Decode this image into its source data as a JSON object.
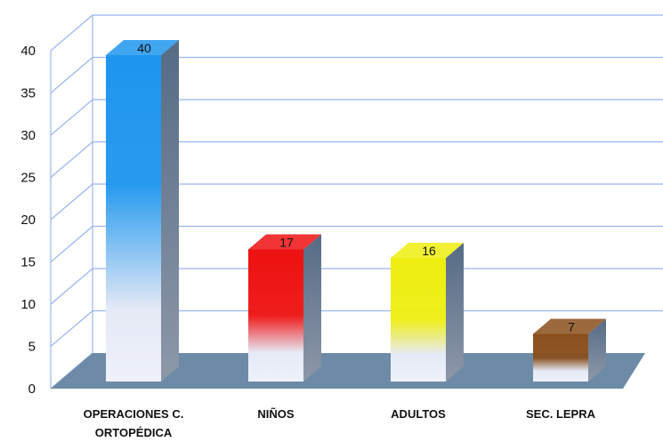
{
  "chart_data": {
    "type": "bar",
    "title": "",
    "xlabel": "",
    "ylabel": "",
    "ylim": [
      0,
      40
    ],
    "yticks": [
      0,
      5,
      10,
      15,
      20,
      25,
      30,
      35,
      40
    ],
    "grid": true,
    "legend": "none",
    "categories": [
      "OPERACIONES C. ORTOPÉDICA",
      "NIÑOS",
      "ADULTOS",
      "SEC. LEPRA"
    ],
    "category_lines": [
      [
        "OPERACIONES C.",
        "ORTOPÉDICA"
      ],
      [
        "NIÑOS"
      ],
      [
        "ADULTOS"
      ],
      [
        "SEC. LEPRA"
      ]
    ],
    "values": [
      40,
      17,
      16,
      7
    ],
    "data_labels": [
      "40",
      "17",
      "16",
      "7"
    ],
    "colors": [
      "#1e96ee",
      "#ee1111",
      "#eeee11",
      "#8a4f1c"
    ],
    "fade_color": "#e6eaf6",
    "grid_color": "#9ab4f2",
    "floor_color": "#6d8ba6"
  }
}
